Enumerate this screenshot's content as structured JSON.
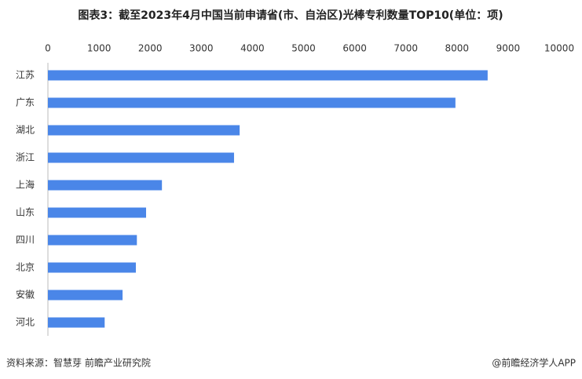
{
  "chart_data": {
    "type": "bar",
    "orientation": "horizontal",
    "title": "图表3：截至2023年4月中国当前申请省(市、自治区)光棒专利数量TOP10(单位：项)",
    "categories": [
      "江苏",
      "广东",
      "湖北",
      "浙江",
      "上海",
      "山东",
      "四川",
      "北京",
      "安徽",
      "河北"
    ],
    "values": [
      8600,
      7970,
      3750,
      3640,
      2230,
      1920,
      1740,
      1720,
      1460,
      1110
    ],
    "color": "#4a86e8",
    "xlim": [
      0,
      10000
    ],
    "xticks": [
      0,
      1000,
      2000,
      3000,
      4000,
      5000,
      6000,
      7000,
      8000,
      9000,
      10000
    ],
    "grid": false,
    "source": "资料来源：智慧芽 前瞻产业研究院",
    "credit": "@前瞻经济学人APP"
  }
}
